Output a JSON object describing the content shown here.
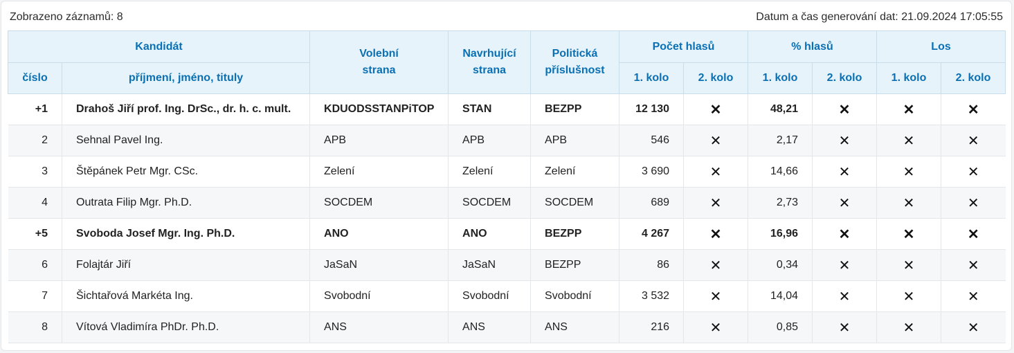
{
  "records_shown": "Zobrazeno záznamů: 8",
  "generated_at": "Datum a čas generování dat: 21.09.2024 17:05:55",
  "headers": {
    "kandidat": "Kandidát",
    "cislo": "číslo",
    "jmeno": "příjmení, jméno, tituly",
    "volebni_strana": [
      "Volební",
      "strana"
    ],
    "navrhujici_strana": [
      "Navrhující",
      "strana"
    ],
    "politicka_prislusnost": [
      "Politická",
      "příslušnost"
    ],
    "pocet_hlasu": "Počet hlasů",
    "procent_hlasu": "% hlasů",
    "los": "Los",
    "kolo1": "1. kolo",
    "kolo2": "2. kolo"
  },
  "cross_symbol": "✕",
  "rows": [
    {
      "cislo": "+1",
      "jmeno": "Drahoš Jiří prof. Ing. DrSc., dr. h. c. mult.",
      "volebni": "KDUODSSTANPiTOP",
      "navrhujici": "STAN",
      "prislusnost": "BEZPP",
      "hlasy1": "12 130",
      "proc1": "48,21",
      "elected": true
    },
    {
      "cislo": "2",
      "jmeno": "Sehnal Pavel Ing.",
      "volebni": "APB",
      "navrhujici": "APB",
      "prislusnost": "APB",
      "hlasy1": "546",
      "proc1": "2,17",
      "elected": false
    },
    {
      "cislo": "3",
      "jmeno": "Štěpánek Petr Mgr. CSc.",
      "volebni": "Zelení",
      "navrhujici": "Zelení",
      "prislusnost": "Zelení",
      "hlasy1": "3 690",
      "proc1": "14,66",
      "elected": false
    },
    {
      "cislo": "4",
      "jmeno": "Outrata Filip Mgr. Ph.D.",
      "volebni": "SOCDEM",
      "navrhujici": "SOCDEM",
      "prislusnost": "SOCDEM",
      "hlasy1": "689",
      "proc1": "2,73",
      "elected": false
    },
    {
      "cislo": "+5",
      "jmeno": "Svoboda Josef Mgr. Ing. Ph.D.",
      "volebni": "ANO",
      "navrhujici": "ANO",
      "prislusnost": "BEZPP",
      "hlasy1": "4 267",
      "proc1": "16,96",
      "elected": true
    },
    {
      "cislo": "6",
      "jmeno": "Folajtár Jiří",
      "volebni": "JaSaN",
      "navrhujici": "JaSaN",
      "prislusnost": "BEZPP",
      "hlasy1": "86",
      "proc1": "0,34",
      "elected": false
    },
    {
      "cislo": "7",
      "jmeno": "Šichtařová Markéta Ing.",
      "volebni": "Svobodní",
      "navrhujici": "Svobodní",
      "prislusnost": "Svobodní",
      "hlasy1": "3 532",
      "proc1": "14,04",
      "elected": false
    },
    {
      "cislo": "8",
      "jmeno": "Vítová Vladimíra PhDr. Ph.D.",
      "volebni": "ANS",
      "navrhujici": "ANS",
      "prislusnost": "ANS",
      "hlasy1": "216",
      "proc1": "0,85",
      "elected": false
    }
  ]
}
